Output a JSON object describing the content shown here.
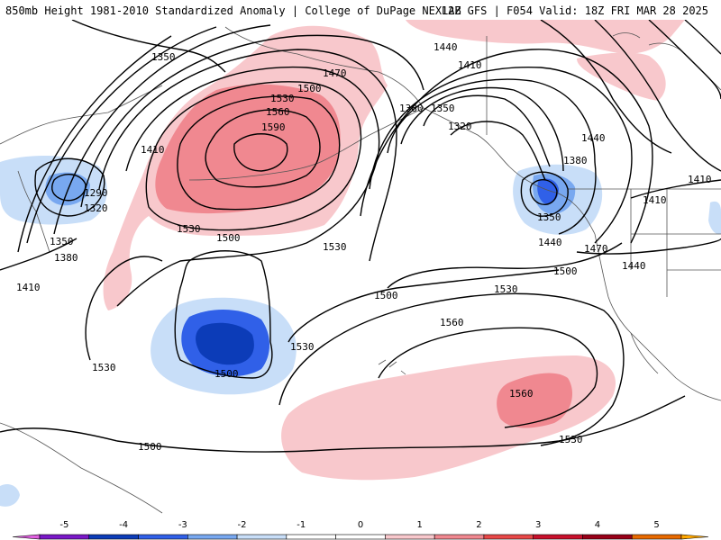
{
  "header": {
    "title_left": "850mb Height 1981-2010 Standardized Anomaly | College of DuPage NEXLAB",
    "title_right": "12Z GFS | F054 Valid: 18Z FRI MAR 28 2025"
  },
  "map": {
    "contour_labels": {
      "c1350_nw": "1350",
      "c1440_n": "1440",
      "c1410_n": "1410",
      "c1470": "1470",
      "c1500_top": "1500",
      "c1530_top": "1530",
      "c1560_top": "1560",
      "c1590": "1590",
      "c1410_w": "1410",
      "c1290": "1290",
      "c1320_w": "1320",
      "c1350_w": "1350",
      "c1380_w": "1380",
      "c1410_sw": "1410",
      "c1530_w": "1530",
      "c1500_mid": "1500",
      "c1530_ctr": "1530",
      "c1500_ctr": "1500",
      "c1500_low": "1500",
      "c1530_low": "1530",
      "c1530_right": "1530",
      "c1560_mid": "1560",
      "c1560_spot": "1560",
      "c1530_bot": "1530",
      "c1500_bot": "1500",
      "c1380_e": "1380",
      "c1350_e": "1350",
      "c1320_e": "1320",
      "c1380_e2": "1380",
      "c1350_e2": "1350",
      "c1440_e": "1440",
      "c1410_e": "1410",
      "c1470_e": "1470",
      "c1440_e2": "1440",
      "c1410_e2": "1410",
      "c1500_e": "1500",
      "c1440_ne": "1440"
    }
  },
  "colorbar": {
    "ticks": [
      "-5",
      "-4",
      "-3",
      "-2",
      "-1",
      "0",
      "1",
      "2",
      "3",
      "4",
      "5"
    ],
    "colors": [
      "#e060e0",
      "#7a18c8",
      "#0c3cb8",
      "#3060e8",
      "#78a8f0",
      "#c8def8",
      "#ffffff",
      "#ffffff",
      "#f8c8cc",
      "#f08890",
      "#e84848",
      "#c8102c",
      "#980018",
      "#e86a00",
      "#ffa800"
    ]
  }
}
